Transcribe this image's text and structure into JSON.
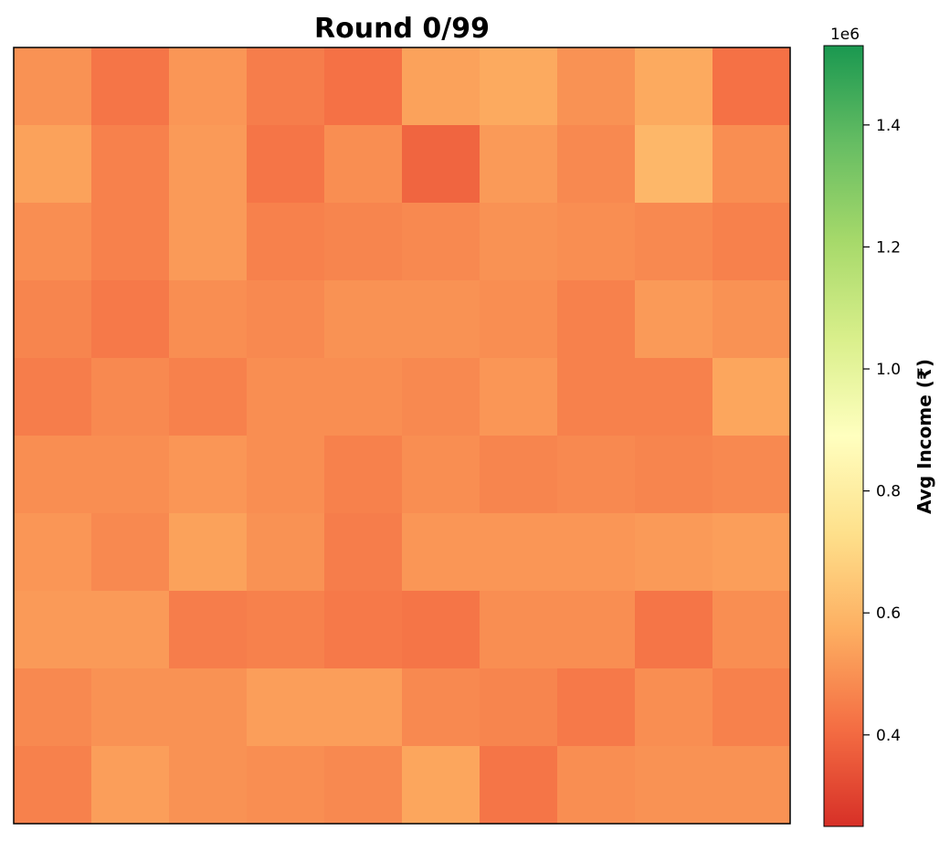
{
  "chart_data": {
    "type": "heatmap",
    "title": "Round 0/99",
    "rows": 10,
    "cols": 10,
    "values": [
      [
        0.5,
        0.43,
        0.51,
        0.45,
        0.42,
        0.54,
        0.56,
        0.5,
        0.56,
        0.42
      ],
      [
        0.54,
        0.46,
        0.52,
        0.43,
        0.49,
        0.39,
        0.52,
        0.48,
        0.6,
        0.49
      ],
      [
        0.49,
        0.46,
        0.52,
        0.46,
        0.47,
        0.48,
        0.5,
        0.49,
        0.48,
        0.46
      ],
      [
        0.47,
        0.44,
        0.49,
        0.48,
        0.5,
        0.5,
        0.49,
        0.46,
        0.52,
        0.5
      ],
      [
        0.45,
        0.48,
        0.46,
        0.49,
        0.49,
        0.48,
        0.51,
        0.46,
        0.46,
        0.55
      ],
      [
        0.49,
        0.49,
        0.51,
        0.49,
        0.46,
        0.49,
        0.47,
        0.48,
        0.47,
        0.48
      ],
      [
        0.51,
        0.48,
        0.54,
        0.5,
        0.45,
        0.51,
        0.51,
        0.51,
        0.52,
        0.53
      ],
      [
        0.52,
        0.52,
        0.45,
        0.46,
        0.44,
        0.43,
        0.49,
        0.49,
        0.43,
        0.49
      ],
      [
        0.48,
        0.5,
        0.5,
        0.53,
        0.53,
        0.48,
        0.47,
        0.44,
        0.49,
        0.46
      ],
      [
        0.46,
        0.53,
        0.5,
        0.49,
        0.48,
        0.55,
        0.43,
        0.49,
        0.5,
        0.5
      ]
    ],
    "colorbar": {
      "label": "Avg Income (₹)",
      "exponent_label": "1e6",
      "range": [
        0.25,
        1.53
      ],
      "ticks": [
        0.4,
        0.6,
        0.8,
        1.0,
        1.2,
        1.4
      ],
      "tick_labels": [
        "0.4",
        "0.6",
        "0.8",
        "1.0",
        "1.2",
        "1.4"
      ],
      "colormap": "RdYlGn",
      "colormap_stops": [
        "#d73027",
        "#f46d43",
        "#fdae61",
        "#fee08b",
        "#ffffbf",
        "#d9ef8b",
        "#a6d96a",
        "#66bd63",
        "#1a9850"
      ]
    },
    "grid": false,
    "xticks": false,
    "yticks": false
  }
}
